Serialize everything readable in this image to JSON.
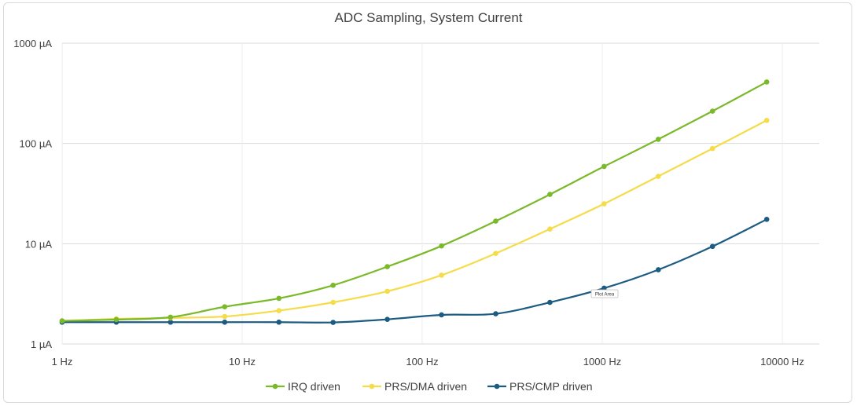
{
  "chart_data": {
    "type": "line",
    "title": "ADC Sampling, System Current",
    "xlabel": "",
    "ylabel": "",
    "x_scale": "log",
    "y_scale": "log",
    "xlim": [
      1,
      10000
    ],
    "ylim": [
      1,
      1000
    ],
    "x_ticks": [
      1,
      10,
      100,
      1000,
      10000
    ],
    "x_tick_labels": [
      "1 Hz",
      "10 Hz",
      "100 Hz",
      "1000 Hz",
      "10000 Hz"
    ],
    "y_ticks": [
      1,
      10,
      100,
      1000
    ],
    "y_tick_labels": [
      "1 µA",
      "10 µA",
      "100 µA",
      "1000 µA"
    ],
    "grid": true,
    "legend_position": "bottom",
    "x": [
      1,
      2,
      4,
      8,
      16,
      32,
      64,
      128,
      256,
      512,
      1024,
      2048,
      4096,
      8192
    ],
    "series": [
      {
        "name": "IRQ driven",
        "color": "#7ab929",
        "values": [
          1.7,
          1.75,
          1.85,
          2.35,
          2.85,
          3.85,
          5.9,
          9.5,
          16.8,
          31,
          59,
          110,
          210,
          410
        ]
      },
      {
        "name": "PRS/DMA driven",
        "color": "#f5dc4a",
        "values": [
          1.7,
          1.78,
          1.82,
          1.88,
          2.15,
          2.6,
          3.35,
          4.85,
          8.0,
          14,
          25,
          47,
          89,
          170
        ]
      },
      {
        "name": "PRS/CMP driven",
        "color": "#1c5c82",
        "values": [
          1.65,
          1.65,
          1.65,
          1.65,
          1.65,
          1.64,
          1.76,
          1.95,
          2.0,
          2.6,
          3.6,
          5.5,
          9.4,
          17.5
        ]
      }
    ],
    "annotation": "Plot Area"
  }
}
